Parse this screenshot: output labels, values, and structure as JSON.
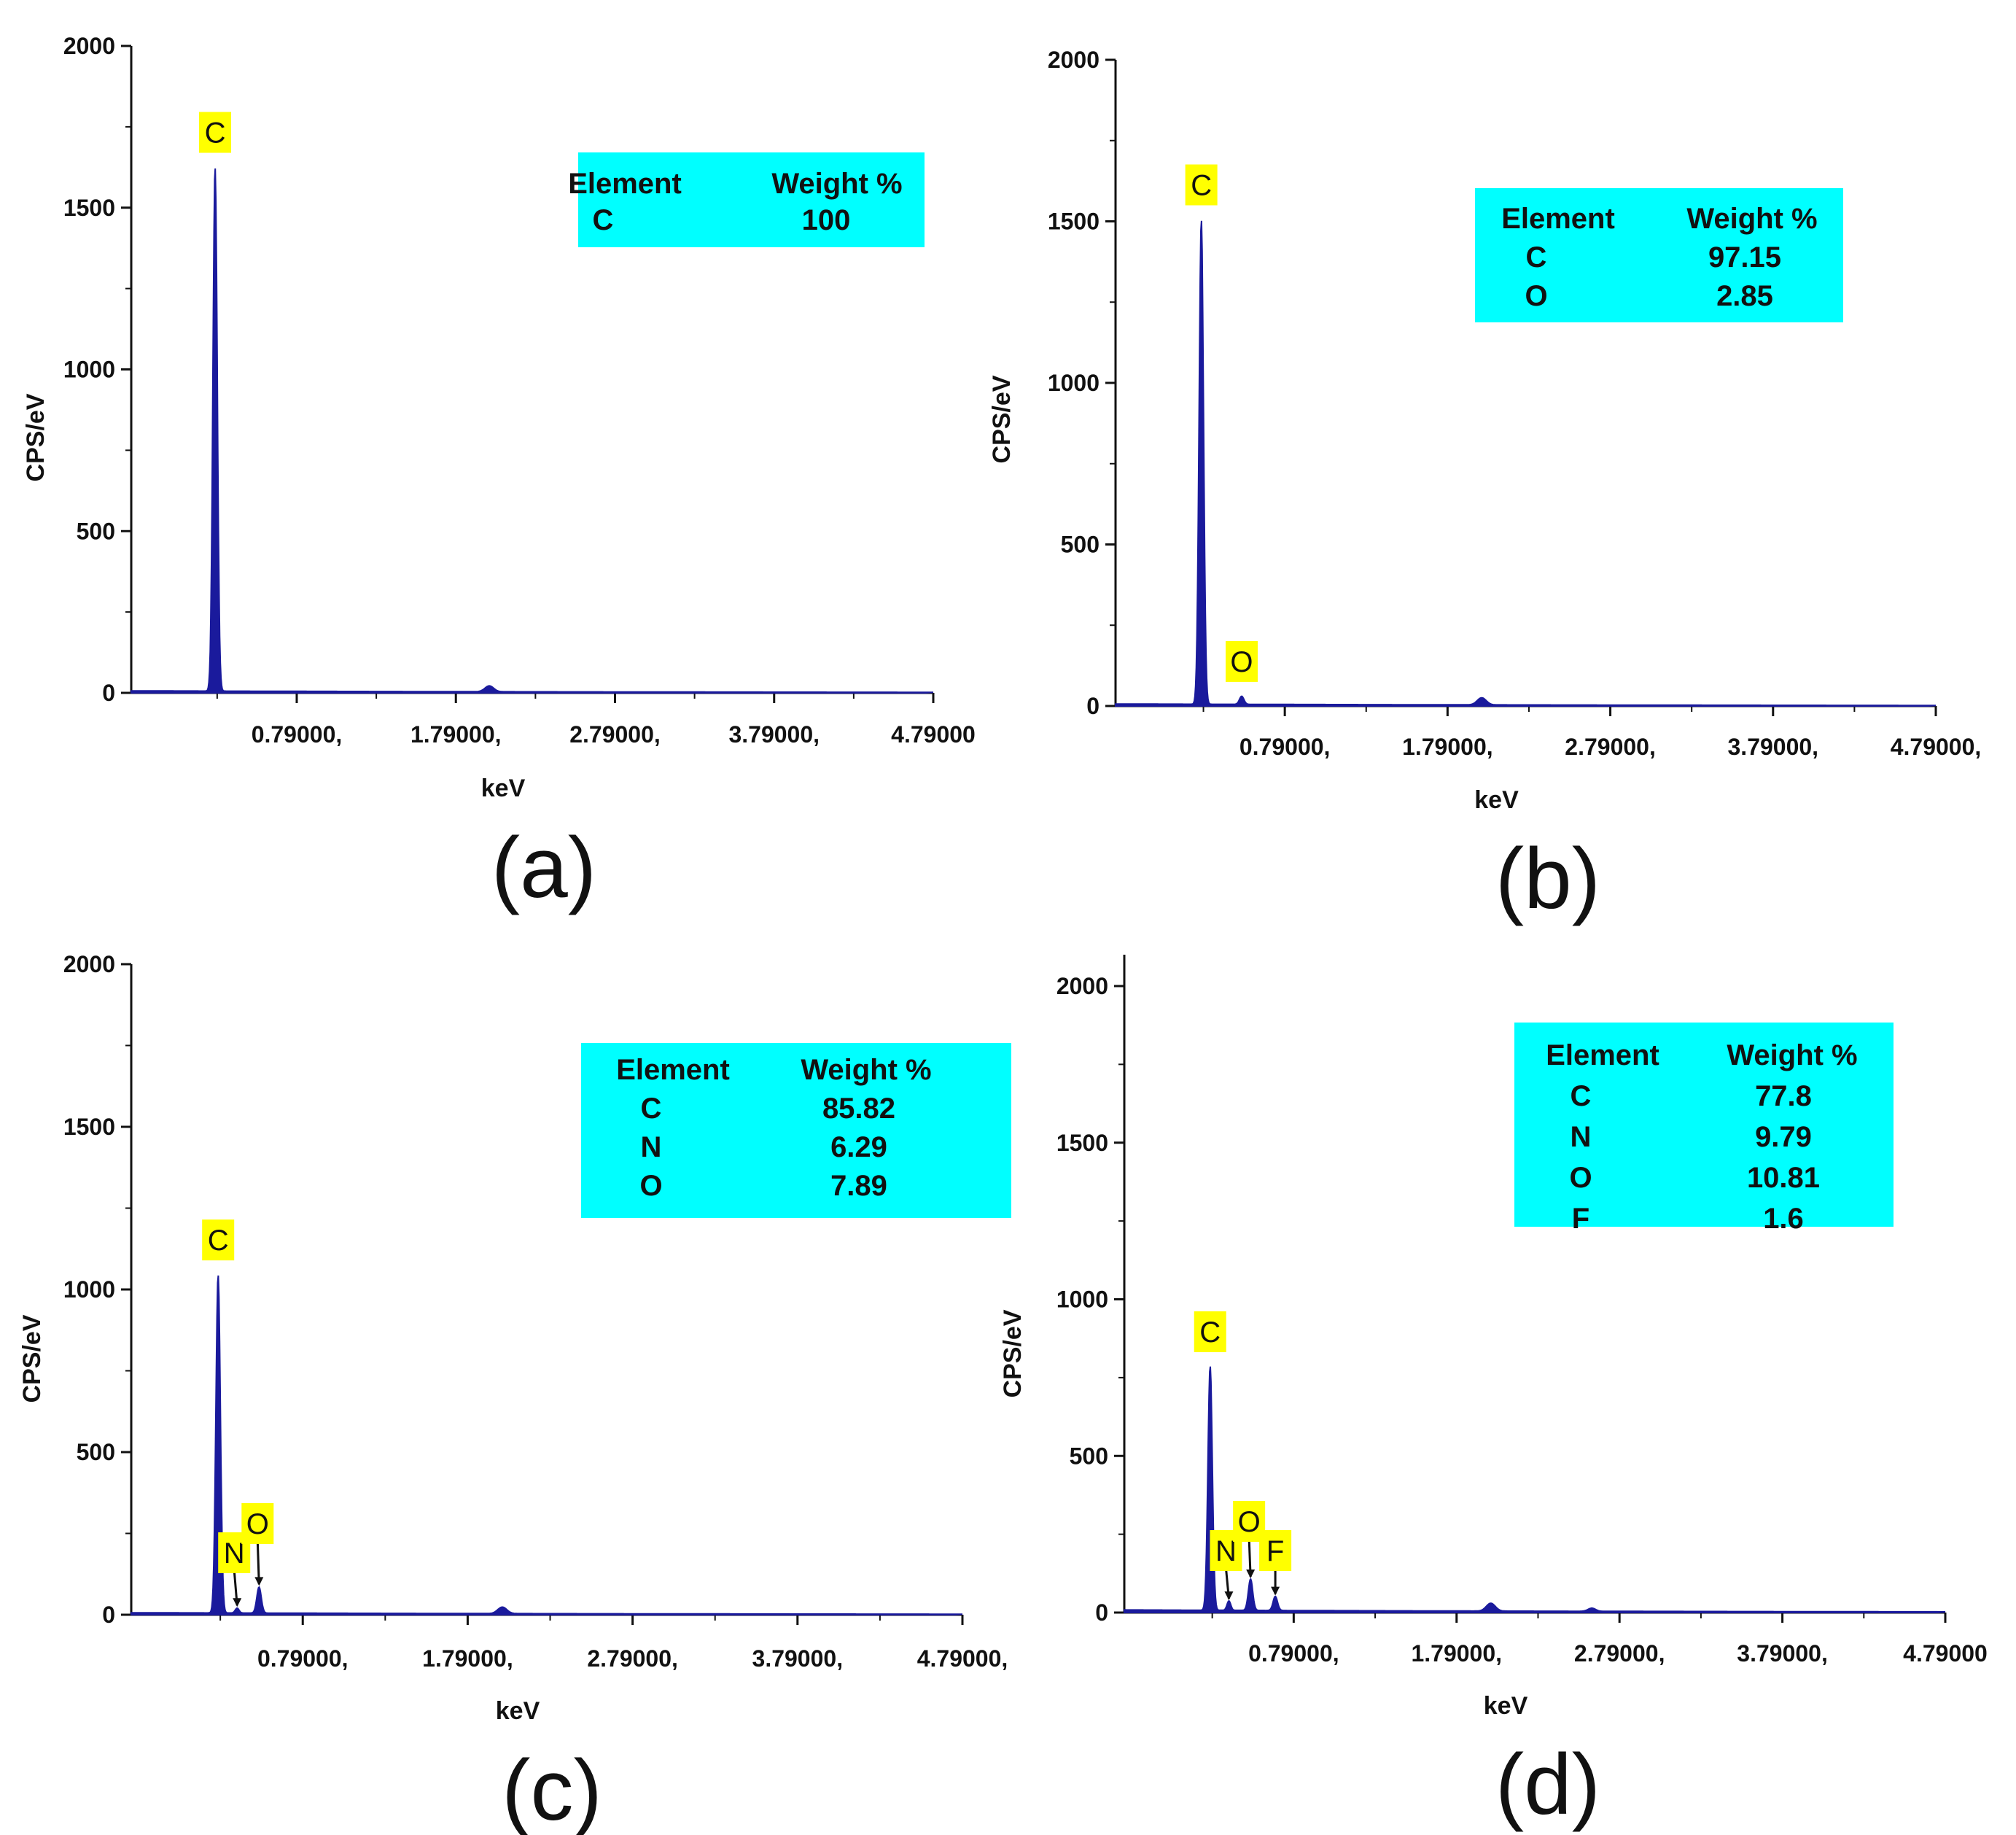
{
  "chart_data": [
    {
      "type": "area",
      "panel_label": "(a)",
      "xlabel": "keV",
      "ylabel": "CPS/eV",
      "ylim": [
        0,
        2000
      ],
      "xlim": [
        -0.25,
        4.79
      ],
      "x_tick_labels": [
        "0.79000,",
        "1.79000,",
        "2.79000,",
        "3.79000,",
        "4.79000"
      ],
      "y_tick_labels": [
        "0",
        "500",
        "1000",
        "1500",
        "2000"
      ],
      "peaks": [
        {
          "element": "C",
          "energy": 0.277,
          "cps": 1620,
          "width": 0.03,
          "label_placement": "above"
        },
        {
          "element": "",
          "energy": 2.0,
          "cps": 18,
          "width": 0.06,
          "label_placement": "none"
        }
      ],
      "baseline": 6,
      "composition_table": {
        "header": [
          "Element",
          "Weight %"
        ],
        "rows": [
          [
            "C",
            "100"
          ]
        ]
      }
    },
    {
      "type": "area",
      "panel_label": "(b)",
      "xlabel": "keV",
      "ylabel": "CPS/eV",
      "ylim": [
        0,
        2000
      ],
      "xlim": [
        -0.25,
        4.79
      ],
      "x_tick_labels": [
        "0.79000,",
        "1.79000,",
        "2.79000,",
        "3.79000,",
        "4.79000,"
      ],
      "y_tick_labels": [
        "0",
        "500",
        "1000",
        "1500",
        "2000"
      ],
      "peaks": [
        {
          "element": "C",
          "energy": 0.277,
          "cps": 1500,
          "width": 0.03,
          "label_placement": "above"
        },
        {
          "element": "O",
          "energy": 0.525,
          "cps": 25,
          "width": 0.03,
          "label_placement": "above"
        },
        {
          "element": "",
          "energy": 2.0,
          "cps": 22,
          "width": 0.06,
          "label_placement": "none"
        }
      ],
      "baseline": 6,
      "composition_table": {
        "header": [
          "Element",
          "Weight %"
        ],
        "rows": [
          [
            "C",
            "97.15"
          ],
          [
            "O",
            "2.85"
          ]
        ]
      }
    },
    {
      "type": "area",
      "panel_label": "(c)",
      "xlabel": "keV",
      "ylabel": "CPS/eV",
      "ylim": [
        0,
        2000
      ],
      "xlim": [
        -0.25,
        4.79
      ],
      "x_tick_labels": [
        "0.79000,",
        "1.79000,",
        "2.79000,",
        "3.79000,",
        "4.79000,"
      ],
      "y_tick_labels": [
        "0",
        "500",
        "1000",
        "1500",
        "2000"
      ],
      "peaks": [
        {
          "element": "C",
          "energy": 0.277,
          "cps": 1040,
          "width": 0.03,
          "label_placement": "above"
        },
        {
          "element": "N",
          "energy": 0.392,
          "cps": 15,
          "width": 0.025,
          "label_placement": "arrow"
        },
        {
          "element": "O",
          "energy": 0.525,
          "cps": 80,
          "width": 0.03,
          "label_placement": "arrow"
        },
        {
          "element": "",
          "energy": 2.0,
          "cps": 20,
          "width": 0.06,
          "label_placement": "none"
        }
      ],
      "baseline": 6,
      "composition_table": {
        "header": [
          "Element",
          "Weight %"
        ],
        "rows": [
          [
            "C",
            "85.82"
          ],
          [
            "N",
            "6.29"
          ],
          [
            "O",
            "7.89"
          ]
        ]
      }
    },
    {
      "type": "area",
      "panel_label": "(d)",
      "xlabel": "keV",
      "ylabel": "CPS/eV",
      "ylim": [
        0,
        2100
      ],
      "xlim": [
        -0.25,
        4.79
      ],
      "x_tick_labels": [
        "0.79000,",
        "1.79000,",
        "2.79000,",
        "3.79000,",
        "4.79000"
      ],
      "y_tick_labels": [
        "0",
        "500",
        "1000",
        "1500",
        "2000"
      ],
      "peaks": [
        {
          "element": "C",
          "energy": 0.277,
          "cps": 780,
          "width": 0.03,
          "label_placement": "above"
        },
        {
          "element": "N",
          "energy": 0.392,
          "cps": 30,
          "width": 0.025,
          "label_placement": "arrow"
        },
        {
          "element": "O",
          "energy": 0.525,
          "cps": 100,
          "width": 0.03,
          "label_placement": "arrow"
        },
        {
          "element": "F",
          "energy": 0.677,
          "cps": 45,
          "width": 0.03,
          "label_placement": "arrow"
        },
        {
          "element": "",
          "energy": 2.0,
          "cps": 25,
          "width": 0.06,
          "label_placement": "none"
        },
        {
          "element": "",
          "energy": 2.62,
          "cps": 10,
          "width": 0.05,
          "label_placement": "none"
        }
      ],
      "baseline": 8,
      "composition_table": {
        "header": [
          "Element",
          "Weight %"
        ],
        "rows": [
          [
            "C",
            "77.8"
          ],
          [
            "N",
            "9.79"
          ],
          [
            "O",
            "10.81"
          ],
          [
            "F",
            "1.6"
          ]
        ]
      }
    }
  ]
}
